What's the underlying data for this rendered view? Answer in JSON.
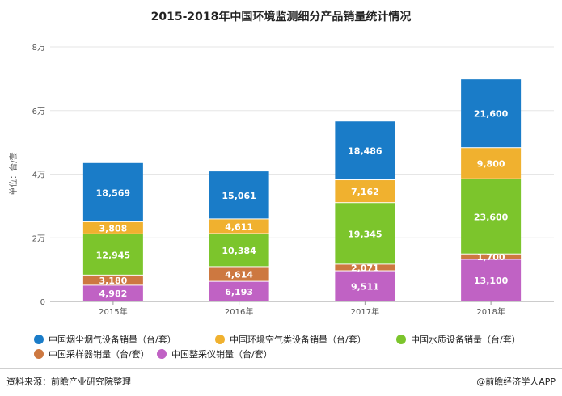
{
  "title": "2015-2018年中国环境监测细分产品销量统计情况",
  "footer": {
    "source": "资料来源：前瞻产业研究院整理",
    "credit": "@前瞻经济学人APP"
  },
  "chart_data": {
    "type": "bar",
    "stacked": true,
    "title": "2015-2018年中国环境监测细分产品销量统计情况",
    "ylabel": "单位：台/套",
    "ylim": [
      0,
      80000
    ],
    "yticks": [
      {
        "value": 0,
        "label": "0"
      },
      {
        "value": 20000,
        "label": "2万"
      },
      {
        "value": 40000,
        "label": "4万"
      },
      {
        "value": 60000,
        "label": "6万"
      },
      {
        "value": 80000,
        "label": "8万"
      }
    ],
    "categories": [
      "2015年",
      "2016年",
      "2017年",
      "2018年"
    ],
    "legend_position": "bottom",
    "series": [
      {
        "name": "中国整采仪销量（台/套）",
        "color": "#c062c4",
        "values": [
          4982,
          6193,
          9511,
          13100
        ],
        "labels": [
          "4,982",
          "6,193",
          "9,511",
          "13,100"
        ]
      },
      {
        "name": "中国采样器销量（台/套）",
        "color": "#cd7840",
        "values": [
          3180,
          4614,
          2071,
          1700
        ],
        "labels": [
          "3,180",
          "4,614",
          "2,071",
          "1,700"
        ]
      },
      {
        "name": "中国水质设备销量（台/套）",
        "color": "#7cc52c",
        "values": [
          12945,
          10384,
          19345,
          23600
        ],
        "labels": [
          "12,945",
          "10,384",
          "19,345",
          "23,600"
        ]
      },
      {
        "name": "中国环境空气类设备销量（台/套）",
        "color": "#f0b12f",
        "values": [
          3808,
          4611,
          7162,
          9800
        ],
        "labels": [
          "3,808",
          "4,611",
          "7,162",
          "9,800"
        ]
      },
      {
        "name": "中国烟尘烟气设备销量（台/套）",
        "color": "#1a7cc8",
        "values": [
          18569,
          15061,
          18486,
          21600
        ],
        "labels": [
          "18,569",
          "15,061",
          "18,486",
          "21,600"
        ]
      }
    ],
    "legend_order": [
      4,
      3,
      2,
      1,
      0
    ]
  }
}
